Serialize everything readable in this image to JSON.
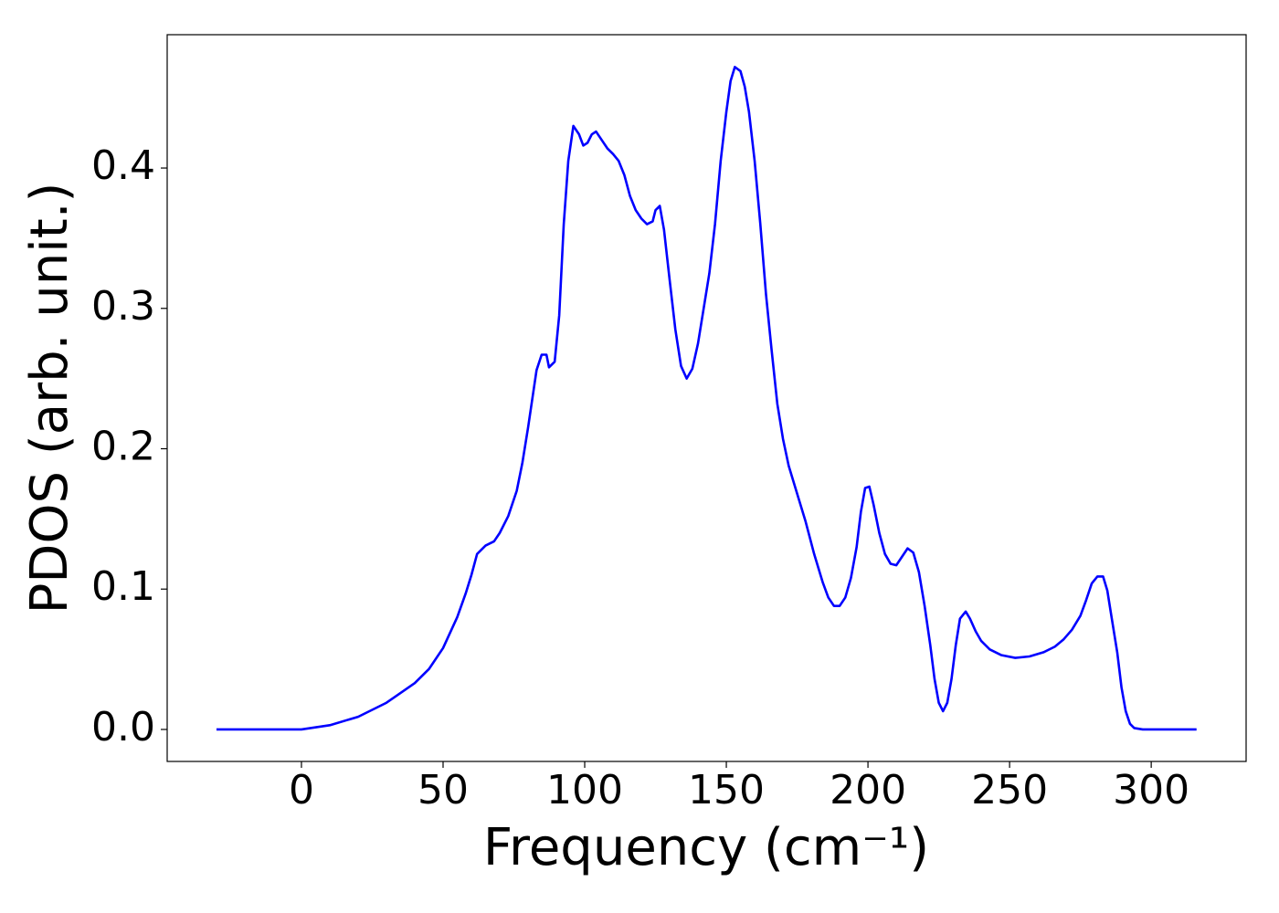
{
  "chart_data": {
    "type": "line",
    "xlabel": "Frequency (cm⁻¹)",
    "ylabel": "PDOS (arb. unit.)",
    "xlim": [
      -47.4,
      333.5
    ],
    "ylim": [
      -0.0228,
      0.495
    ],
    "xticks": [
      0,
      50,
      100,
      150,
      200,
      250,
      300
    ],
    "yticks": [
      {
        "value": 0,
        "label": "0.0"
      },
      0.1,
      0.2,
      0.3,
      0.4
    ],
    "series": [
      {
        "color": "#0000ff",
        "x": [
          -30,
          -20,
          -10,
          0,
          10,
          20,
          30,
          40,
          45,
          50,
          55,
          58,
          60,
          62,
          65,
          68,
          70,
          73,
          76,
          78,
          80,
          83,
          84.8,
          86.5,
          87.4,
          89.4,
          91,
          92.6,
          94.2,
          96,
          98,
          99.5,
          101,
          102.5,
          104,
          106,
          108,
          110,
          112,
          114,
          116,
          118,
          120,
          122,
          124,
          125,
          126.5,
          128,
          130,
          132,
          134,
          136,
          138,
          140,
          142,
          144,
          146,
          148,
          150,
          151.5,
          153,
          155,
          156.5,
          158,
          160,
          162,
          164,
          166,
          168,
          170,
          172,
          175,
          178,
          181,
          184,
          186,
          188,
          190,
          192,
          194,
          196,
          197.5,
          199,
          200.5,
          202,
          204,
          206,
          208,
          210,
          212,
          214,
          216,
          218,
          220,
          222,
          223.5,
          225,
          226.5,
          228,
          229.5,
          231,
          232.5,
          234.5,
          236,
          238,
          240,
          243,
          247,
          252,
          257,
          262,
          266,
          269,
          272,
          275,
          277,
          279,
          281,
          283,
          284.5,
          286,
          288,
          289.5,
          291,
          292.5,
          294,
          297,
          305,
          316
        ],
        "values": [
          0,
          0,
          0,
          0,
          0.003,
          0.009,
          0.019,
          0.033,
          0.043,
          0.058,
          0.08,
          0.097,
          0.11,
          0.125,
          0.131,
          0.134,
          0.14,
          0.152,
          0.17,
          0.19,
          0.215,
          0.256,
          0.267,
          0.267,
          0.258,
          0.262,
          0.295,
          0.36,
          0.405,
          0.43,
          0.424,
          0.416,
          0.418,
          0.424,
          0.426,
          0.42,
          0.414,
          0.41,
          0.405,
          0.395,
          0.38,
          0.37,
          0.364,
          0.36,
          0.362,
          0.37,
          0.373,
          0.356,
          0.32,
          0.285,
          0.259,
          0.25,
          0.257,
          0.275,
          0.3,
          0.325,
          0.36,
          0.405,
          0.44,
          0.462,
          0.472,
          0.469,
          0.458,
          0.44,
          0.405,
          0.36,
          0.31,
          0.27,
          0.232,
          0.207,
          0.188,
          0.168,
          0.148,
          0.125,
          0.105,
          0.094,
          0.088,
          0.088,
          0.094,
          0.108,
          0.13,
          0.155,
          0.172,
          0.173,
          0.16,
          0.14,
          0.125,
          0.118,
          0.117,
          0.123,
          0.129,
          0.126,
          0.112,
          0.088,
          0.06,
          0.036,
          0.019,
          0.013,
          0.019,
          0.036,
          0.06,
          0.079,
          0.084,
          0.079,
          0.07,
          0.063,
          0.057,
          0.053,
          0.051,
          0.052,
          0.055,
          0.059,
          0.064,
          0.071,
          0.081,
          0.092,
          0.104,
          0.109,
          0.109,
          0.099,
          0.08,
          0.055,
          0.03,
          0.013,
          0.004,
          0.001,
          0,
          0,
          0
        ]
      }
    ]
  }
}
